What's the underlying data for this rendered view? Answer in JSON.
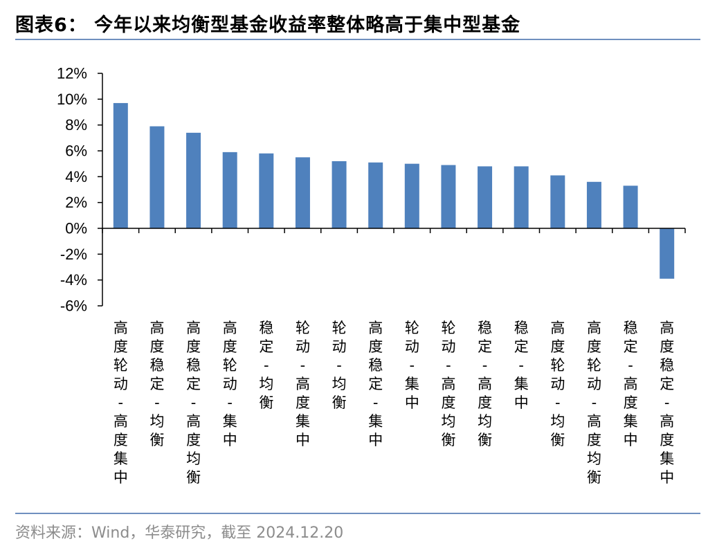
{
  "title": "图表6： 今年以来均衡型基金收益率整体略高于集中型基金",
  "source": "资料来源：Wind，华泰研究，截至 2024.12.20",
  "colors": {
    "bar": "#4f81bd",
    "rule": "#6f8fbf",
    "axis": "#000000"
  },
  "chart_data": {
    "type": "bar",
    "categories": [
      "高度轮动-高度集中",
      "高度稳定-均衡",
      "高度稳定-高度均衡",
      "高度轮动-集中",
      "稳定-均衡",
      "轮动-高度集中",
      "轮动-均衡",
      "高度稳定-集中",
      "轮动-集中",
      "轮动-高度均衡",
      "稳定-高度均衡",
      "稳定-集中",
      "高度轮动-均衡",
      "高度轮动-高度均衡",
      "稳定-高度集中",
      "高度稳定-高度集中"
    ],
    "values": [
      9.7,
      7.9,
      7.4,
      5.9,
      5.8,
      5.5,
      5.2,
      5.1,
      5.0,
      4.9,
      4.8,
      4.8,
      4.1,
      3.6,
      3.3,
      -3.9
    ],
    "ylim": [
      -6,
      12
    ],
    "yticks": [
      12,
      10,
      8,
      6,
      4,
      2,
      0,
      -2,
      -4,
      -6
    ],
    "ytick_labels": [
      "12%",
      "10%",
      "8%",
      "6%",
      "4%",
      "2%",
      "0%",
      "-2%",
      "-4%",
      "-6%"
    ],
    "xlabel": "",
    "ylabel": "",
    "legend": "none",
    "grid": false
  }
}
